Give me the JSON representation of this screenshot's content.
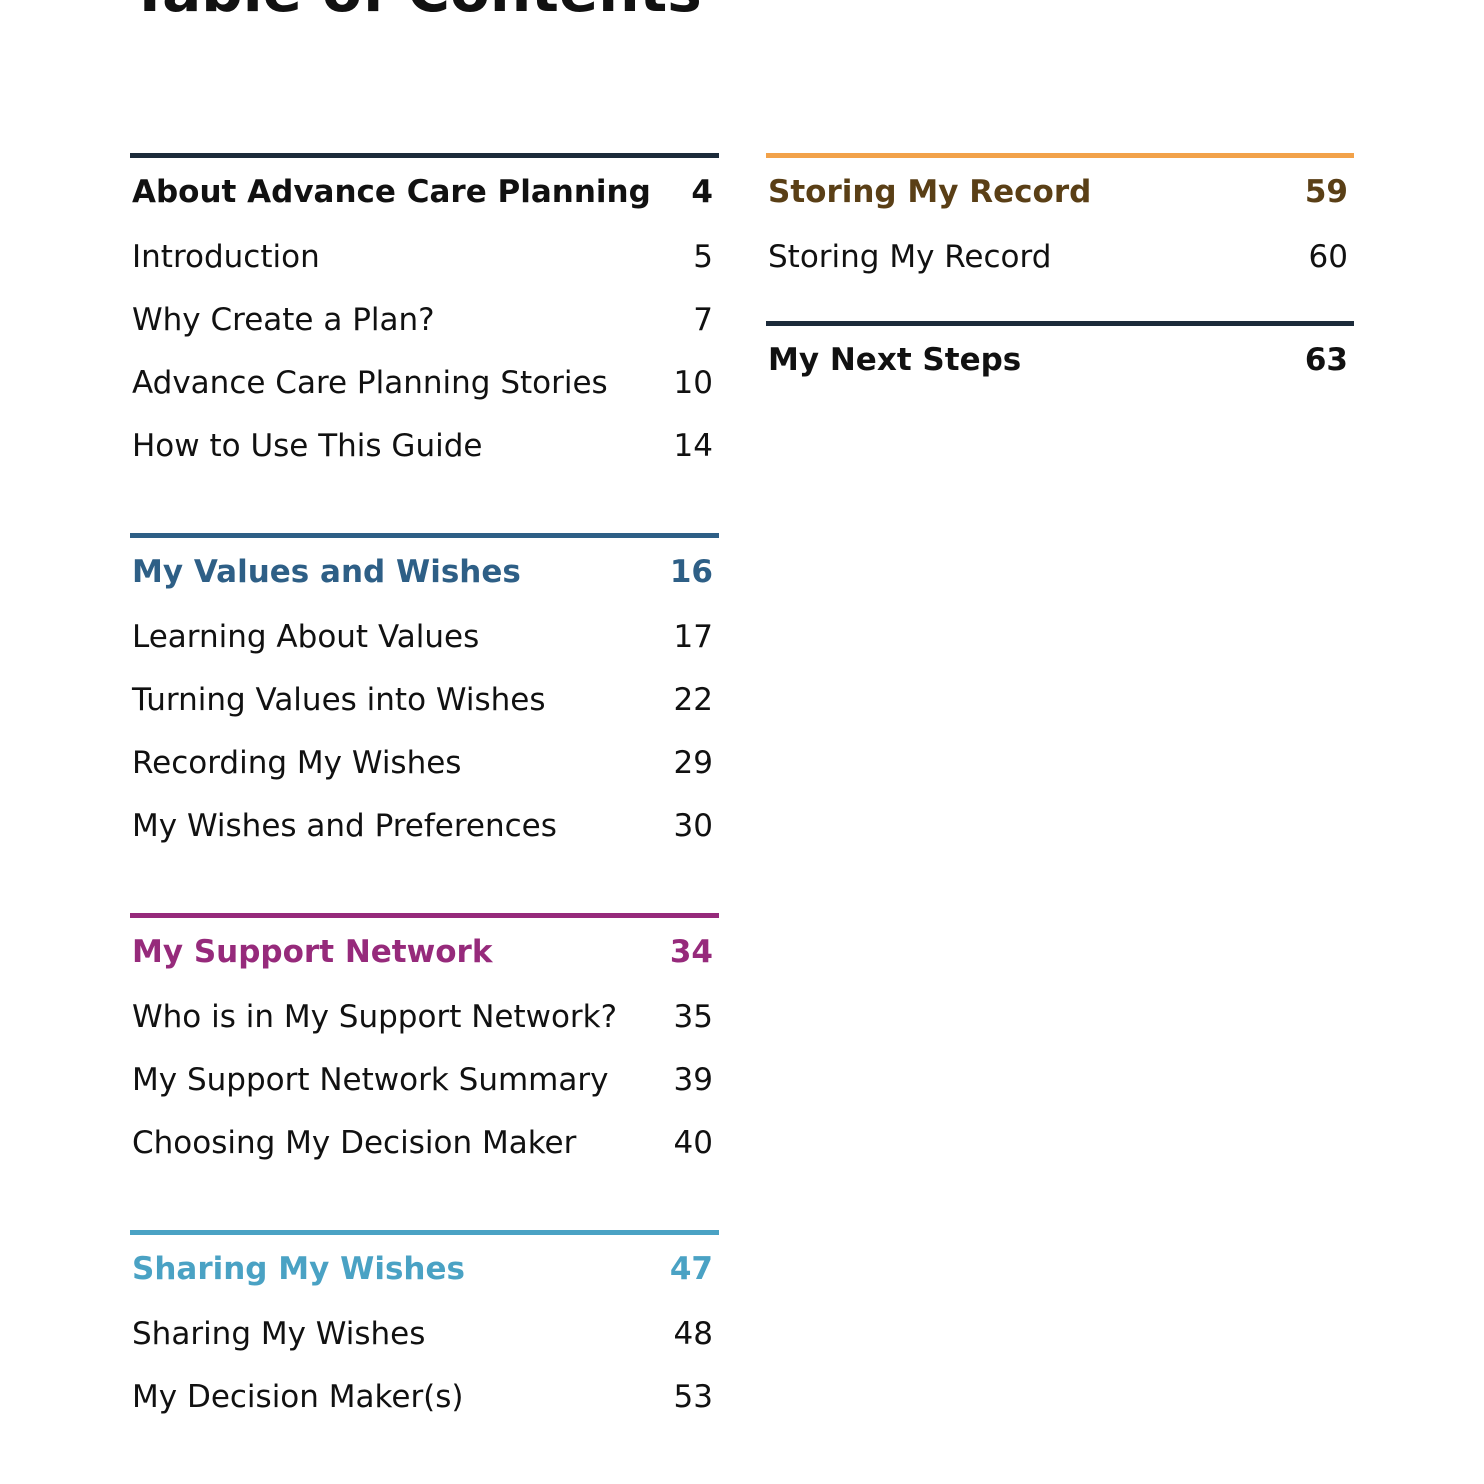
{
  "page": {
    "title": "Table of Contents"
  },
  "colors": {
    "about": "#1c2b3a",
    "values": "#2e5f86",
    "support": "#962a7b",
    "sharing": "#4aa2c4",
    "storing_rule": "#f2a24a",
    "storing_text": "#5a3f16",
    "next": "#1c2b3a"
  },
  "sections": {
    "about": {
      "title": "About Advance Care Planning",
      "page": "4",
      "items": [
        {
          "label": "Introduction",
          "page": "5"
        },
        {
          "label": "Why Create a Plan?",
          "page": "7"
        },
        {
          "label": "Advance Care Planning Stories",
          "page": "10"
        },
        {
          "label": "How to Use This Guide",
          "page": "14"
        }
      ]
    },
    "values": {
      "title": "My Values and Wishes",
      "page": "16",
      "items": [
        {
          "label": "Learning About Values",
          "page": "17"
        },
        {
          "label": "Turning Values into Wishes",
          "page": "22"
        },
        {
          "label": "Recording My Wishes",
          "page": "29"
        },
        {
          "label": "My Wishes and Preferences",
          "page": "30"
        }
      ]
    },
    "support": {
      "title": "My Support Network",
      "page": "34",
      "items": [
        {
          "label": "Who is in My Support Network?",
          "page": "35"
        },
        {
          "label": "My Support Network Summary",
          "page": "39"
        },
        {
          "label": "Choosing My Decision Maker",
          "page": "40"
        }
      ]
    },
    "sharing": {
      "title": "Sharing My Wishes",
      "page": "47",
      "items": [
        {
          "label": "Sharing My Wishes",
          "page": "48"
        },
        {
          "label": "My Decision Maker(s)",
          "page": "53"
        }
      ]
    },
    "storing": {
      "title": "Storing My Record",
      "page": "59",
      "items": [
        {
          "label": "Storing My Record",
          "page": "60"
        }
      ]
    },
    "next": {
      "title": "My Next Steps",
      "page": "63",
      "items": []
    }
  }
}
